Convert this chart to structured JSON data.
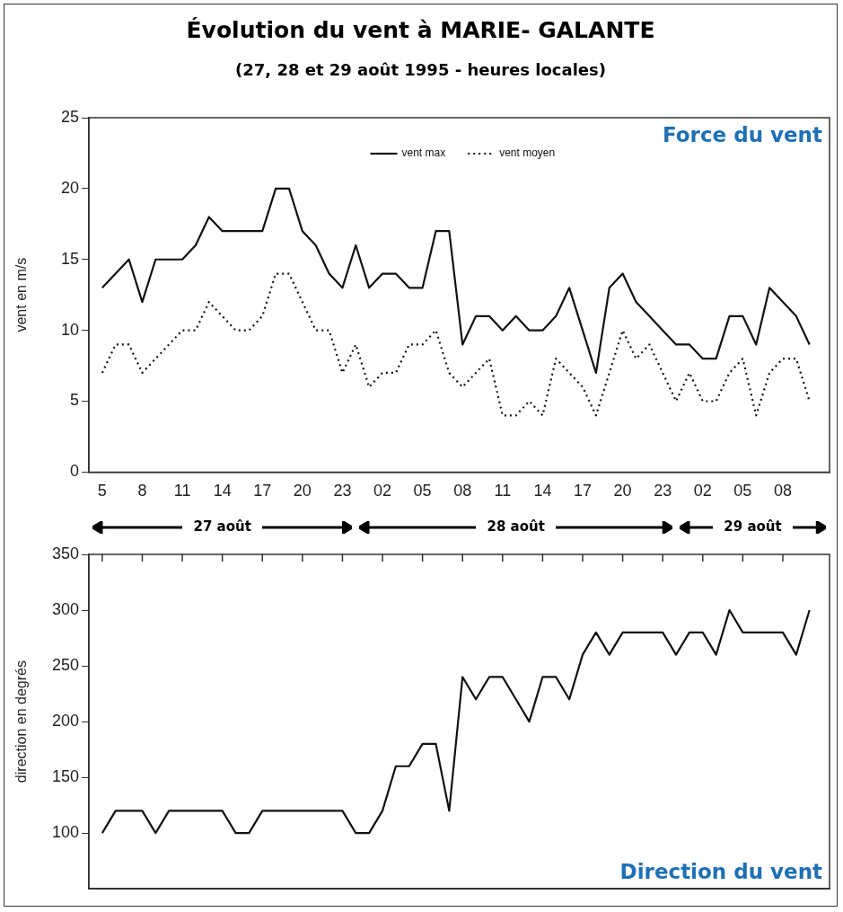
{
  "chart_data": [
    {
      "type": "line",
      "title": "Évolution du vent à MARIE- GALANTE",
      "subtitle": "(27, 28 et 29 août 1995 - heures locales)",
      "ylabel": "vent en m/s",
      "annotations": [
        "Force du vent"
      ],
      "x": [
        "1995-08-27T05:00",
        "1995-08-27T06:00",
        "1995-08-27T07:00",
        "1995-08-27T08:00",
        "1995-08-27T09:00",
        "1995-08-27T10:00",
        "1995-08-27T11:00",
        "1995-08-27T12:00",
        "1995-08-27T13:00",
        "1995-08-27T14:00",
        "1995-08-27T15:00",
        "1995-08-27T16:00",
        "1995-08-27T17:00",
        "1995-08-27T18:00",
        "1995-08-27T19:00",
        "1995-08-27T20:00",
        "1995-08-27T21:00",
        "1995-08-27T22:00",
        "1995-08-27T23:00",
        "1995-08-28T00:00",
        "1995-08-28T01:00",
        "1995-08-28T02:00",
        "1995-08-28T03:00",
        "1995-08-28T04:00",
        "1995-08-28T05:00",
        "1995-08-28T06:00",
        "1995-08-28T07:00",
        "1995-08-28T08:00",
        "1995-08-28T09:00",
        "1995-08-28T10:00",
        "1995-08-28T11:00",
        "1995-08-28T12:00",
        "1995-08-28T13:00",
        "1995-08-28T14:00",
        "1995-08-28T15:00",
        "1995-08-28T16:00",
        "1995-08-28T17:00",
        "1995-08-28T18:00",
        "1995-08-28T19:00",
        "1995-08-28T20:00",
        "1995-08-28T21:00",
        "1995-08-28T22:00",
        "1995-08-28T23:00",
        "1995-08-29T00:00",
        "1995-08-29T01:00",
        "1995-08-29T02:00",
        "1995-08-29T03:00",
        "1995-08-29T04:00",
        "1995-08-29T05:00",
        "1995-08-29T06:00",
        "1995-08-29T07:00",
        "1995-08-29T08:00",
        "1995-08-29T09:00",
        "1995-08-29T10:00"
      ],
      "series": [
        {
          "name": "vent max",
          "color": "#111111",
          "line_style": "solid",
          "values": [
            13,
            14,
            15,
            12,
            15,
            15,
            15,
            16,
            18,
            17,
            17,
            17,
            17,
            20,
            20,
            17,
            16,
            14,
            13,
            16,
            13,
            14,
            14,
            13,
            13,
            17,
            17,
            9,
            11,
            11,
            10,
            11,
            10,
            10,
            11,
            13,
            10,
            7,
            13,
            14,
            12,
            11,
            10,
            9,
            9,
            8,
            8,
            11,
            11,
            9,
            13,
            12,
            11,
            9
          ]
        },
        {
          "name": "vent moyen",
          "color": "#111111",
          "line_style": "dotted",
          "values": [
            7,
            9,
            9,
            7,
            8,
            9,
            10,
            10,
            12,
            11,
            10,
            10,
            11,
            14,
            14,
            12,
            10,
            10,
            7,
            9,
            6,
            7,
            7,
            9,
            9,
            10,
            7,
            6,
            7,
            8,
            4,
            4,
            5,
            4,
            8,
            7,
            6,
            4,
            7,
            10,
            8,
            9,
            7,
            5,
            7,
            5,
            5,
            7,
            8,
            4,
            7,
            8,
            8,
            5
          ]
        }
      ],
      "xlim": [
        "1995-08-27T04:00",
        "1995-08-29T11:30"
      ],
      "xticks": [
        {
          "value": "1995-08-27T05:00",
          "label": "5"
        },
        {
          "value": "1995-08-27T08:00",
          "label": "8"
        },
        {
          "value": "1995-08-27T11:00",
          "label": "11"
        },
        {
          "value": "1995-08-27T14:00",
          "label": "14"
        },
        {
          "value": "1995-08-27T17:00",
          "label": "17"
        },
        {
          "value": "1995-08-27T20:00",
          "label": "20"
        },
        {
          "value": "1995-08-27T23:00",
          "label": "23"
        },
        {
          "value": "1995-08-28T02:00",
          "label": "02"
        },
        {
          "value": "1995-08-28T05:00",
          "label": "05"
        },
        {
          "value": "1995-08-28T08:00",
          "label": "08"
        },
        {
          "value": "1995-08-28T11:00",
          "label": "11"
        },
        {
          "value": "1995-08-28T14:00",
          "label": "14"
        },
        {
          "value": "1995-08-28T17:00",
          "label": "17"
        },
        {
          "value": "1995-08-28T20:00",
          "label": "20"
        },
        {
          "value": "1995-08-28T23:00",
          "label": "23"
        },
        {
          "value": "1995-08-29T02:00",
          "label": "02"
        },
        {
          "value": "1995-08-29T05:00",
          "label": "05"
        },
        {
          "value": "1995-08-29T08:00",
          "label": "08"
        }
      ],
      "ylim": [
        0,
        25
      ],
      "yticks": [
        0,
        5,
        10,
        15,
        20,
        25
      ],
      "legend": "top",
      "marker": "none",
      "grid": false
    },
    {
      "type": "line",
      "ylabel": "direction en degrés",
      "annotations": [
        "27 août",
        "28 août",
        "29 août",
        "Direction du vent"
      ],
      "x": [
        "1995-08-27T05:00",
        "1995-08-27T06:00",
        "1995-08-27T07:00",
        "1995-08-27T08:00",
        "1995-08-27T09:00",
        "1995-08-27T10:00",
        "1995-08-27T11:00",
        "1995-08-27T12:00",
        "1995-08-27T13:00",
        "1995-08-27T14:00",
        "1995-08-27T15:00",
        "1995-08-27T16:00",
        "1995-08-27T17:00",
        "1995-08-27T18:00",
        "1995-08-27T19:00",
        "1995-08-27T20:00",
        "1995-08-27T21:00",
        "1995-08-27T22:00",
        "1995-08-27T23:00",
        "1995-08-28T00:00",
        "1995-08-28T01:00",
        "1995-08-28T02:00",
        "1995-08-28T03:00",
        "1995-08-28T04:00",
        "1995-08-28T05:00",
        "1995-08-28T06:00",
        "1995-08-28T07:00",
        "1995-08-28T08:00",
        "1995-08-28T09:00",
        "1995-08-28T10:00",
        "1995-08-28T11:00",
        "1995-08-28T12:00",
        "1995-08-28T13:00",
        "1995-08-28T14:00",
        "1995-08-28T15:00",
        "1995-08-28T16:00",
        "1995-08-28T17:00",
        "1995-08-28T18:00",
        "1995-08-28T19:00",
        "1995-08-28T20:00",
        "1995-08-28T21:00",
        "1995-08-28T22:00",
        "1995-08-28T23:00",
        "1995-08-29T00:00",
        "1995-08-29T01:00",
        "1995-08-29T02:00",
        "1995-08-29T03:00",
        "1995-08-29T04:00",
        "1995-08-29T05:00",
        "1995-08-29T06:00",
        "1995-08-29T07:00",
        "1995-08-29T08:00",
        "1995-08-29T09:00",
        "1995-08-29T10:00"
      ],
      "series": [
        {
          "color": "#111111",
          "line_style": "solid",
          "values": [
            100,
            120,
            120,
            120,
            100,
            120,
            120,
            120,
            120,
            120,
            100,
            100,
            120,
            120,
            120,
            120,
            120,
            120,
            120,
            100,
            100,
            120,
            160,
            160,
            180,
            180,
            120,
            240,
            220,
            240,
            240,
            220,
            200,
            240,
            240,
            220,
            260,
            280,
            260,
            280,
            280,
            280,
            280,
            260,
            280,
            280,
            260,
            300,
            280,
            280,
            280,
            280,
            260,
            300
          ]
        }
      ],
      "xlim": [
        "1995-08-27T04:00",
        "1995-08-29T11:30"
      ],
      "xticks": [
        "1995-08-27T05:00",
        "1995-08-27T08:00",
        "1995-08-27T11:00",
        "1995-08-27T14:00",
        "1995-08-27T17:00",
        "1995-08-27T20:00",
        "1995-08-27T23:00",
        "1995-08-28T02:00",
        "1995-08-28T05:00",
        "1995-08-28T08:00",
        "1995-08-28T11:00",
        "1995-08-28T14:00",
        "1995-08-28T17:00",
        "1995-08-28T20:00",
        "1995-08-28T23:00",
        "1995-08-29T02:00",
        "1995-08-29T05:00",
        "1995-08-29T08:00"
      ],
      "ylim": [
        50,
        350
      ],
      "yticks": [
        100,
        150,
        200,
        250,
        300,
        350
      ],
      "tick_labels": "y",
      "marker": "none",
      "grid": false
    }
  ]
}
